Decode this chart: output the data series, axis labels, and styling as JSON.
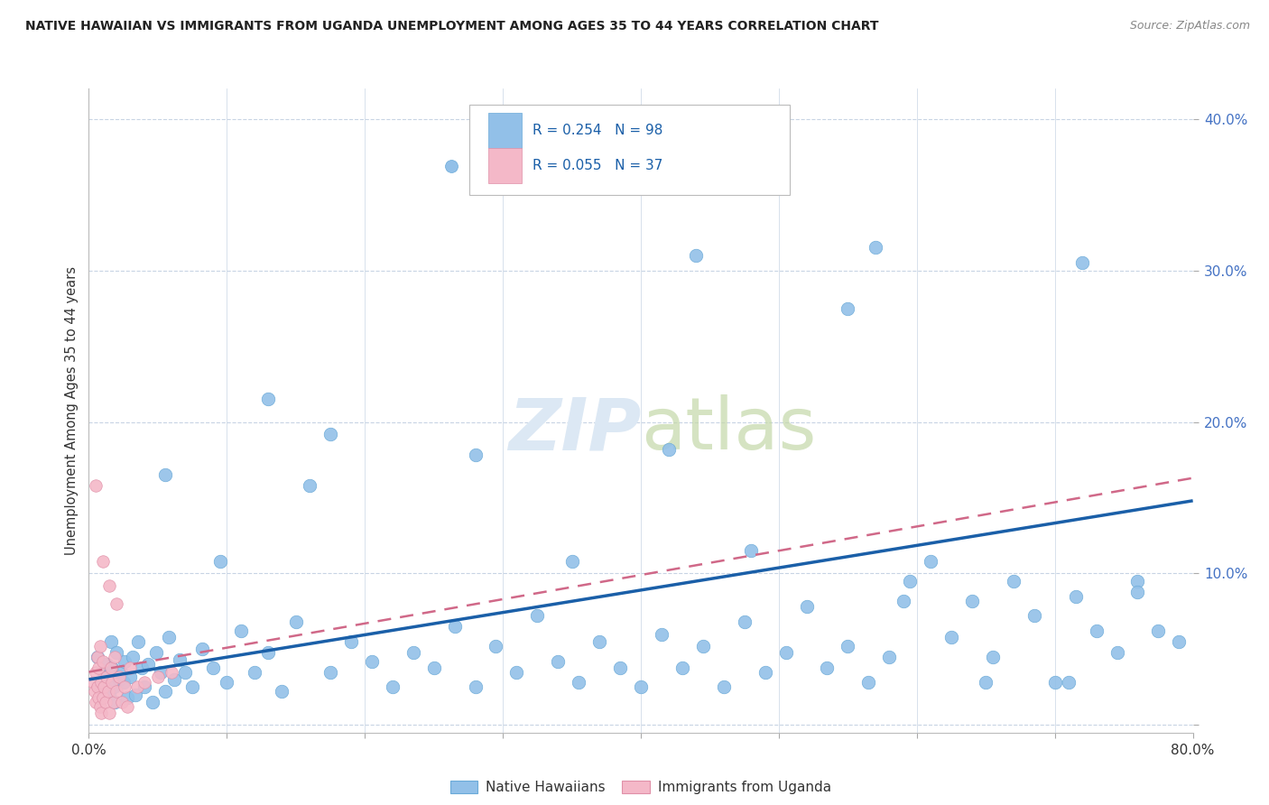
{
  "title": "NATIVE HAWAIIAN VS IMMIGRANTS FROM UGANDA UNEMPLOYMENT AMONG AGES 35 TO 44 YEARS CORRELATION CHART",
  "source": "Source: ZipAtlas.com",
  "ylabel": "Unemployment Among Ages 35 to 44 years",
  "xlim": [
    0.0,
    0.8
  ],
  "ylim": [
    -0.005,
    0.42
  ],
  "blue_color": "#92c0e8",
  "blue_edge_color": "#6aaad8",
  "pink_color": "#f4b8c8",
  "pink_edge_color": "#e090a8",
  "blue_line_color": "#1a5fa8",
  "pink_line_color": "#d06888",
  "grid_color": "#c8d4e4",
  "background_color": "#ffffff",
  "title_color": "#222222",
  "source_color": "#888888",
  "ylabel_color": "#333333",
  "yaxis_tick_color": "#4472c4",
  "xaxis_tick_color": "#333333",
  "watermark_color": "#dce8f4",
  "legend_R_blue": "R = 0.254",
  "legend_N_blue": "N = 98",
  "legend_R_pink": "R = 0.055",
  "legend_N_pink": "N = 37",
  "blue_line_y_start": 0.03,
  "blue_line_y_end": 0.148,
  "pink_line_y_start": 0.035,
  "pink_line_y_end": 0.163,
  "blue_scatter_x": [
    0.006,
    0.009,
    0.011,
    0.013,
    0.015,
    0.016,
    0.017,
    0.018,
    0.019,
    0.02,
    0.022,
    0.023,
    0.025,
    0.026,
    0.028,
    0.03,
    0.032,
    0.034,
    0.036,
    0.038,
    0.04,
    0.043,
    0.046,
    0.049,
    0.052,
    0.055,
    0.058,
    0.062,
    0.066,
    0.07,
    0.075,
    0.082,
    0.09,
    0.1,
    0.11,
    0.12,
    0.13,
    0.14,
    0.15,
    0.16,
    0.175,
    0.19,
    0.205,
    0.22,
    0.235,
    0.25,
    0.265,
    0.28,
    0.295,
    0.31,
    0.325,
    0.34,
    0.355,
    0.37,
    0.385,
    0.4,
    0.415,
    0.43,
    0.445,
    0.46,
    0.475,
    0.49,
    0.505,
    0.52,
    0.535,
    0.55,
    0.565,
    0.58,
    0.595,
    0.61,
    0.625,
    0.64,
    0.655,
    0.67,
    0.685,
    0.7,
    0.715,
    0.73,
    0.745,
    0.76,
    0.13,
    0.44,
    0.55,
    0.57,
    0.72,
    0.055,
    0.095,
    0.175,
    0.28,
    0.35,
    0.42,
    0.48,
    0.59,
    0.65,
    0.71,
    0.76,
    0.775,
    0.79
  ],
  "blue_scatter_y": [
    0.045,
    0.025,
    0.035,
    0.04,
    0.02,
    0.055,
    0.038,
    0.025,
    0.015,
    0.048,
    0.03,
    0.035,
    0.028,
    0.042,
    0.018,
    0.032,
    0.045,
    0.02,
    0.055,
    0.038,
    0.025,
    0.04,
    0.015,
    0.048,
    0.035,
    0.022,
    0.058,
    0.03,
    0.043,
    0.035,
    0.025,
    0.05,
    0.038,
    0.028,
    0.062,
    0.035,
    0.048,
    0.022,
    0.068,
    0.158,
    0.035,
    0.055,
    0.042,
    0.025,
    0.048,
    0.038,
    0.065,
    0.025,
    0.052,
    0.035,
    0.072,
    0.042,
    0.028,
    0.055,
    0.038,
    0.025,
    0.06,
    0.038,
    0.052,
    0.025,
    0.068,
    0.035,
    0.048,
    0.078,
    0.038,
    0.052,
    0.028,
    0.045,
    0.095,
    0.108,
    0.058,
    0.082,
    0.045,
    0.095,
    0.072,
    0.028,
    0.085,
    0.062,
    0.048,
    0.095,
    0.215,
    0.31,
    0.275,
    0.315,
    0.305,
    0.165,
    0.108,
    0.192,
    0.178,
    0.108,
    0.182,
    0.115,
    0.082,
    0.028,
    0.028,
    0.088,
    0.062,
    0.055
  ],
  "pink_scatter_x": [
    0.003,
    0.004,
    0.005,
    0.005,
    0.006,
    0.006,
    0.007,
    0.007,
    0.008,
    0.008,
    0.009,
    0.009,
    0.01,
    0.01,
    0.011,
    0.012,
    0.013,
    0.014,
    0.015,
    0.016,
    0.017,
    0.018,
    0.019,
    0.02,
    0.022,
    0.024,
    0.026,
    0.028,
    0.03,
    0.035,
    0.04,
    0.05,
    0.06,
    0.005,
    0.01,
    0.015,
    0.02
  ],
  "pink_scatter_y": [
    0.028,
    0.022,
    0.035,
    0.015,
    0.045,
    0.025,
    0.018,
    0.038,
    0.012,
    0.052,
    0.008,
    0.028,
    0.018,
    0.042,
    0.025,
    0.015,
    0.032,
    0.022,
    0.008,
    0.038,
    0.028,
    0.015,
    0.045,
    0.022,
    0.032,
    0.015,
    0.025,
    0.012,
    0.038,
    0.025,
    0.028,
    0.032,
    0.035,
    0.158,
    0.108,
    0.092,
    0.08
  ]
}
